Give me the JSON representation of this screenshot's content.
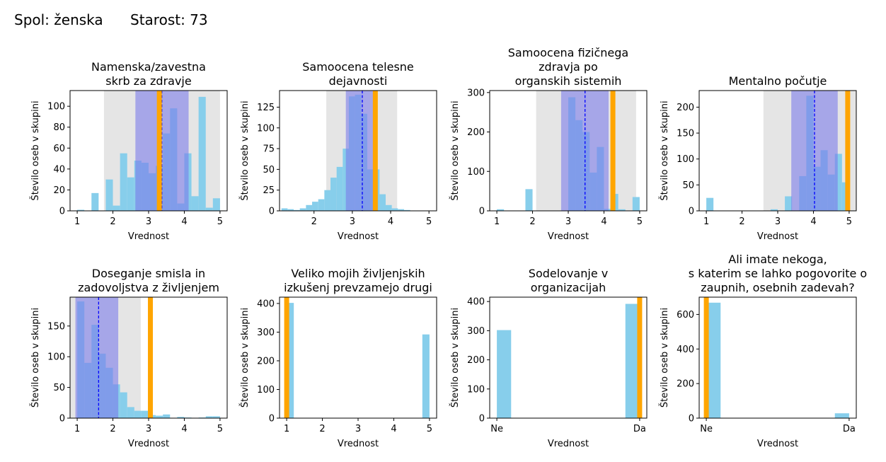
{
  "header": {
    "sex_label": "Spol: ženska",
    "age_label": "Starost: 73"
  },
  "colors": {
    "hist": "#87ceeb",
    "gray_band": "#e0e0e0",
    "blue_band": "#7b7bea",
    "mean_line": "#0000ff",
    "marker": "#ffa500",
    "axis": "#000000"
  },
  "chart_data": [
    {
      "type": "bar",
      "id": "c1",
      "title": [
        "Namenska/zavestna",
        "skrb za zdravje"
      ],
      "xlabel": "Vrednost",
      "ylabel": "Število oseb v skupini",
      "xlim": [
        0.8,
        5.2
      ],
      "ylim": [
        0,
        115
      ],
      "xticks": [
        1,
        2,
        3,
        4,
        5
      ],
      "xticklabels": [
        "1",
        "2",
        "3",
        "4",
        "5"
      ],
      "yticks": [
        0,
        20,
        40,
        60,
        80,
        100
      ],
      "yticklabels": [
        "0",
        "20",
        "40",
        "60",
        "80",
        "100"
      ],
      "bin_width": 0.2,
      "bins": [
        [
          1.0,
          1
        ],
        [
          1.4,
          17
        ],
        [
          1.8,
          30
        ],
        [
          2.0,
          5
        ],
        [
          2.2,
          55
        ],
        [
          2.4,
          32
        ],
        [
          2.6,
          48
        ],
        [
          2.8,
          46
        ],
        [
          3.0,
          36
        ],
        [
          3.2,
          43
        ],
        [
          3.4,
          74
        ],
        [
          3.6,
          98
        ],
        [
          3.8,
          7
        ],
        [
          4.0,
          55
        ],
        [
          4.2,
          14
        ],
        [
          4.4,
          109
        ],
        [
          4.6,
          3
        ],
        [
          4.8,
          12
        ]
      ],
      "gray_band": [
        1.75,
        5.0
      ],
      "blue_band": [
        2.63,
        4.12
      ],
      "mean": 3.37,
      "marker": 3.3
    },
    {
      "type": "bar",
      "id": "c2",
      "title": [
        "Samoocena telesne",
        "dejavnosti"
      ],
      "xlabel": "Vrednost",
      "ylabel": "Število oseb v skupini",
      "xlim": [
        1.1,
        5.2
      ],
      "ylim": [
        0,
        145
      ],
      "xticks": [
        2,
        3,
        4,
        5
      ],
      "xticklabels": [
        "2",
        "3",
        "4",
        "5"
      ],
      "yticks": [
        0,
        25,
        50,
        75,
        100,
        125
      ],
      "yticklabels": [
        "0",
        "25",
        "50",
        "75",
        "100",
        "125"
      ],
      "bin_width": 0.16,
      "bins": [
        [
          1.15,
          3
        ],
        [
          1.31,
          2
        ],
        [
          1.47,
          1
        ],
        [
          1.63,
          3
        ],
        [
          1.79,
          7
        ],
        [
          1.95,
          11
        ],
        [
          2.11,
          14
        ],
        [
          2.27,
          25
        ],
        [
          2.43,
          40
        ],
        [
          2.59,
          53
        ],
        [
          2.75,
          75
        ],
        [
          2.91,
          138
        ],
        [
          3.07,
          140
        ],
        [
          3.23,
          117
        ],
        [
          3.39,
          50
        ],
        [
          3.55,
          50
        ],
        [
          3.71,
          20
        ],
        [
          3.87,
          7
        ],
        [
          4.03,
          3
        ],
        [
          4.19,
          2
        ],
        [
          4.35,
          1
        ]
      ],
      "gray_band": [
        2.32,
        4.17
      ],
      "blue_band": [
        2.83,
        3.63
      ],
      "mean": 3.26,
      "marker": 3.6
    },
    {
      "type": "bar",
      "id": "c3",
      "title": [
        "Samoocena fizičnega",
        "zdravja po",
        "organskih sistemih"
      ],
      "xlabel": "Vrednost",
      "ylabel": "Število oseb v skupini",
      "xlim": [
        0.8,
        5.2
      ],
      "ylim": [
        0,
        305
      ],
      "xticks": [
        1,
        2,
        3,
        4,
        5
      ],
      "xticklabels": [
        "1",
        "2",
        "3",
        "4",
        "5"
      ],
      "yticks": [
        0,
        100,
        200,
        300
      ],
      "yticklabels": [
        "0",
        "100",
        "200",
        "300"
      ],
      "bin_width": 0.2,
      "bins": [
        [
          1.0,
          4
        ],
        [
          1.8,
          55
        ],
        [
          3.0,
          288
        ],
        [
          3.2,
          230
        ],
        [
          3.4,
          200
        ],
        [
          3.6,
          97
        ],
        [
          3.8,
          162
        ],
        [
          4.0,
          5
        ],
        [
          4.2,
          43
        ],
        [
          4.4,
          4
        ],
        [
          4.8,
          35
        ]
      ],
      "gray_band": [
        2.1,
        4.9
      ],
      "blue_band": [
        2.8,
        4.13
      ],
      "mean": 3.47,
      "marker": 4.25
    },
    {
      "type": "bar",
      "id": "c4",
      "title": [
        "Mentalno počutje"
      ],
      "xlabel": "Vrednost",
      "ylabel": "Število oseb v skupini",
      "xlim": [
        0.8,
        5.2
      ],
      "ylim": [
        0,
        232
      ],
      "xticks": [
        1,
        2,
        3,
        4,
        5
      ],
      "xticklabels": [
        "1",
        "2",
        "3",
        "4",
        "5"
      ],
      "yticks": [
        0,
        50,
        100,
        150,
        200
      ],
      "yticklabels": [
        "0",
        "50",
        "100",
        "150",
        "200"
      ],
      "bin_width": 0.2,
      "bins": [
        [
          1.0,
          25
        ],
        [
          2.8,
          3
        ],
        [
          3.2,
          28
        ],
        [
          3.6,
          67
        ],
        [
          3.8,
          222
        ],
        [
          4.0,
          85
        ],
        [
          4.2,
          117
        ],
        [
          4.4,
          70
        ],
        [
          4.6,
          110
        ],
        [
          4.8,
          55
        ]
      ],
      "gray_band": [
        2.6,
        5.2
      ],
      "blue_band": [
        3.38,
        4.68
      ],
      "mean": 4.03,
      "marker": 4.96
    },
    {
      "type": "bar",
      "id": "c5",
      "title": [
        "Doseganje smisla in",
        "zadovoljstva z življenjem"
      ],
      "xlabel": "Vrednost",
      "ylabel": "Število oseb v skupini",
      "xlim": [
        0.8,
        5.2
      ],
      "ylim": [
        0,
        197
      ],
      "xticks": [
        1,
        2,
        3,
        4,
        5
      ],
      "xticklabels": [
        "1",
        "2",
        "3",
        "4",
        "5"
      ],
      "yticks": [
        0,
        50,
        100,
        150
      ],
      "yticklabels": [
        "0",
        "50",
        "100",
        "150"
      ],
      "bin_width": 0.2,
      "bins": [
        [
          1.0,
          190
        ],
        [
          1.2,
          90
        ],
        [
          1.4,
          152
        ],
        [
          1.6,
          105
        ],
        [
          1.8,
          82
        ],
        [
          2.0,
          55
        ],
        [
          2.2,
          42
        ],
        [
          2.4,
          18
        ],
        [
          2.6,
          12
        ],
        [
          2.8,
          12
        ],
        [
          3.0,
          5
        ],
        [
          3.2,
          4
        ],
        [
          3.4,
          6
        ],
        [
          3.8,
          2
        ],
        [
          4.0,
          1
        ],
        [
          4.4,
          1
        ],
        [
          4.6,
          3
        ],
        [
          4.8,
          3
        ]
      ],
      "gray_band": [
        0.8,
        2.78
      ],
      "blue_band": [
        0.95,
        2.15
      ],
      "mean": 1.6,
      "marker": 3.05
    },
    {
      "type": "bar",
      "id": "c6",
      "title": [
        "Veliko mojih življenjskih",
        "izkušenj prevzamejo drugi"
      ],
      "xlabel": "Vrednost",
      "ylabel": "Število oseb v skupini",
      "xlim": [
        0.8,
        5.2
      ],
      "ylim": [
        0,
        422
      ],
      "xticks": [
        1,
        2,
        3,
        4,
        5
      ],
      "xticklabels": [
        "1",
        "2",
        "3",
        "4",
        "5"
      ],
      "yticks": [
        0,
        100,
        200,
        300,
        400
      ],
      "yticklabels": [
        "0",
        "100",
        "200",
        "300",
        "400"
      ],
      "bin_width": 0.2,
      "bins": [
        [
          1.0,
          402
        ],
        [
          4.8,
          292
        ]
      ],
      "gray_band": null,
      "blue_band": null,
      "mean": null,
      "marker": 1.0
    },
    {
      "type": "bar",
      "id": "c7",
      "title": [
        "Sodelovanje v",
        "organizacijah"
      ],
      "xlabel": "Vrednost",
      "ylabel": "Število oseb v skupini",
      "xlim": [
        -0.05,
        1.05
      ],
      "ylim": [
        0,
        415
      ],
      "xticks": [
        0,
        1
      ],
      "xticklabels": [
        "Ne",
        "Da"
      ],
      "yticks": [
        0,
        100,
        200,
        300,
        400
      ],
      "yticklabels": [
        "0",
        "100",
        "200",
        "300",
        "400"
      ],
      "bin_width": 0.1,
      "bins": [
        [
          0.0,
          302
        ],
        [
          0.9,
          392
        ]
      ],
      "gray_band": null,
      "blue_band": null,
      "mean": null,
      "marker": 1.0
    },
    {
      "type": "bar",
      "id": "c8",
      "title": [
        "Ali imate nekoga,",
        "s katerim se lahko pogovorite o",
        "zaupnih, osebnih zadevah?"
      ],
      "xlabel": "Vrednost",
      "ylabel": "Število oseb v skupini",
      "xlim": [
        -0.05,
        1.05
      ],
      "ylim": [
        0,
        700
      ],
      "xticks": [
        0,
        1
      ],
      "xticklabels": [
        "Ne",
        "Da"
      ],
      "yticks": [
        0,
        200,
        400,
        600
      ],
      "yticklabels": [
        "0",
        "200",
        "400",
        "600"
      ],
      "bin_width": 0.1,
      "bins": [
        [
          0.0,
          668
        ],
        [
          0.9,
          28
        ]
      ],
      "gray_band": null,
      "blue_band": null,
      "mean": null,
      "marker": 0.0
    }
  ]
}
